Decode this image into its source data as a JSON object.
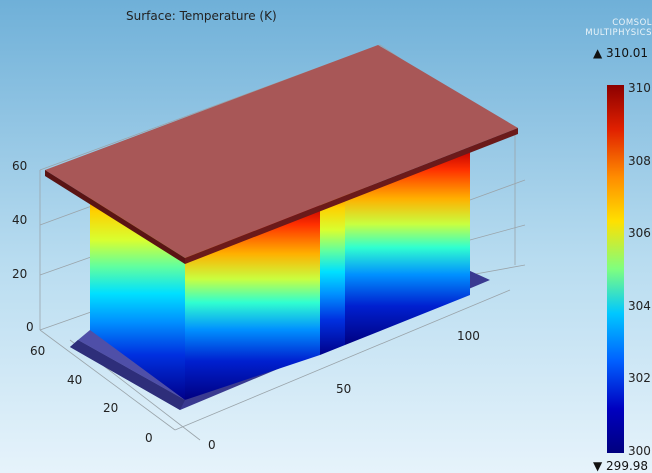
{
  "plot": {
    "title": "Surface: Temperature (K)",
    "logo_line1": "COMSOL",
    "logo_line2": "MULTIPHYSICS"
  },
  "axes": {
    "z_ticks": [
      "60",
      "40",
      "20",
      "0"
    ],
    "y_ticks": [
      "60",
      "40",
      "20",
      "0"
    ],
    "x_ticks": [
      "0",
      "50",
      "100"
    ]
  },
  "colorbar": {
    "max_label": "▲ 310.01",
    "min_label": "▼ 299.98",
    "ticks": [
      "310",
      "308",
      "306",
      "304",
      "302",
      "300"
    ],
    "colors": [
      "#8b0000",
      "#e02000",
      "#ff8c00",
      "#ffe000",
      "#7fff7f",
      "#00c8ff",
      "#0060ff",
      "#0000c0",
      "#00007f"
    ]
  },
  "colors": {
    "top_plate": "#a85757",
    "top_plate_edge": "#5a1414",
    "base_plate": "#4f4fa8"
  }
}
